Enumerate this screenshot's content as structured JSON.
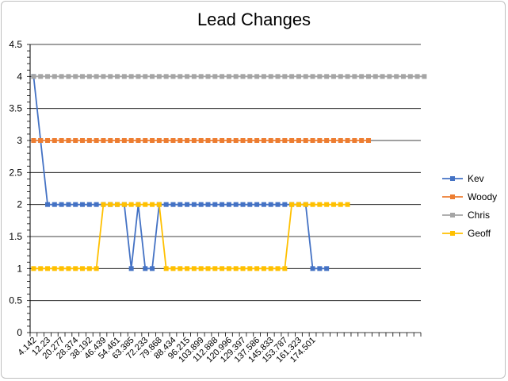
{
  "chart_data": {
    "type": "line",
    "title": "Lead Changes",
    "xlabel": "",
    "ylabel": "",
    "ylim": [
      0,
      4.5
    ],
    "yticks": [
      0,
      0.5,
      1,
      1.5,
      2,
      2.5,
      3,
      3.5,
      4,
      4.5
    ],
    "ytick_labels": [
      "0",
      "0.5",
      "1",
      "1.5",
      "2",
      "2.5",
      "3",
      "3.5",
      "4",
      "4.5"
    ],
    "grid": true,
    "legend_position": "right",
    "x_tick_labels": [
      "4.142",
      "12.23",
      "20.277",
      "28.374",
      "38.192",
      "46.439",
      "54.461",
      "63.385",
      "72.233",
      "79.868",
      "88.434",
      "96.215",
      "103.899",
      "112.888",
      "120.996",
      "129.397",
      "137.586",
      "145.833",
      "153.787",
      "161.323",
      "174.501"
    ],
    "n_categories": 56,
    "series": [
      {
        "name": "Kev",
        "color": "#4472c4",
        "marker": "square",
        "values": [
          4,
          3,
          2,
          2,
          2,
          2,
          2,
          2,
          2,
          2,
          2,
          2,
          2,
          2,
          1,
          2,
          1,
          1,
          2,
          2,
          2,
          2,
          2,
          2,
          2,
          2,
          2,
          2,
          2,
          2,
          2,
          2,
          2,
          2,
          2,
          2,
          2,
          2,
          2,
          2,
          1,
          1,
          1
        ]
      },
      {
        "name": "Woody",
        "color": "#ed7d31",
        "marker": "square",
        "values": [
          3,
          3,
          3,
          3,
          3,
          3,
          3,
          3,
          3,
          3,
          3,
          3,
          3,
          3,
          3,
          3,
          3,
          3,
          3,
          3,
          3,
          3,
          3,
          3,
          3,
          3,
          3,
          3,
          3,
          3,
          3,
          3,
          3,
          3,
          3,
          3,
          3,
          3,
          3,
          3,
          3,
          3,
          3,
          3,
          3,
          3,
          3,
          3,
          3
        ]
      },
      {
        "name": "Chris",
        "color": "#a5a5a5",
        "marker": "square",
        "values": [
          4,
          4,
          4,
          4,
          4,
          4,
          4,
          4,
          4,
          4,
          4,
          4,
          4,
          4,
          4,
          4,
          4,
          4,
          4,
          4,
          4,
          4,
          4,
          4,
          4,
          4,
          4,
          4,
          4,
          4,
          4,
          4,
          4,
          4,
          4,
          4,
          4,
          4,
          4,
          4,
          4,
          4,
          4,
          4,
          4,
          4,
          4,
          4,
          4,
          4,
          4,
          4,
          4,
          4,
          4,
          4,
          4
        ]
      },
      {
        "name": "Geoff",
        "color": "#ffc000",
        "marker": "square",
        "values": [
          1,
          1,
          1,
          1,
          1,
          1,
          1,
          1,
          1,
          1,
          2,
          2,
          2,
          2,
          2,
          2,
          2,
          2,
          2,
          1,
          1,
          1,
          1,
          1,
          1,
          1,
          1,
          1,
          1,
          1,
          1,
          1,
          1,
          1,
          1,
          1,
          1,
          2,
          2,
          2,
          2,
          2,
          2,
          2,
          2,
          2
        ]
      }
    ]
  }
}
